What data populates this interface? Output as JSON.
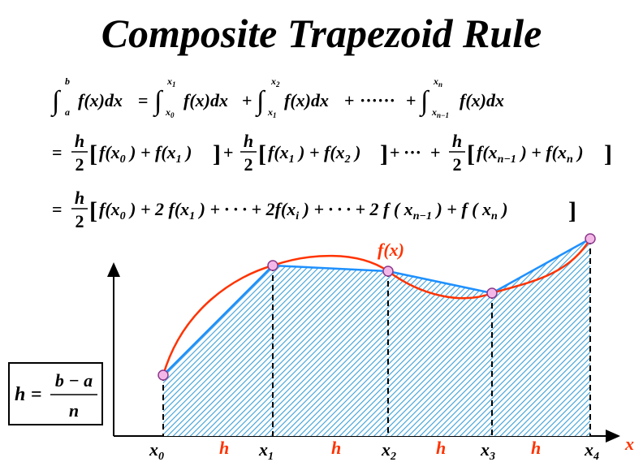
{
  "title": "Composite Trapezoid Rule",
  "formula": {
    "line1": {
      "int_lower": "a",
      "int_upper": "b",
      "f": "f(x)dx",
      "eq": "=",
      "int1_lower": "x",
      "int1_lower_sub": "0",
      "int1_upper": "x",
      "int1_upper_sub": "1",
      "int2_lower": "x",
      "int2_lower_sub": "1",
      "int2_upper": "x",
      "int2_upper_sub": "2",
      "plus": "+",
      "dots": "······",
      "intn_lower": "x",
      "intn_lower_sub": "n−1",
      "intn_upper": "x",
      "intn_upper_sub": "n"
    },
    "line2": {
      "h": "h",
      "two": "2",
      "ellipsis": "···"
    },
    "line3": {
      "coef": "2",
      "fxi": "2f(x",
      "sub_i": "i",
      "sub_n1": "n−1",
      "sub_n": "n"
    }
  },
  "h_box": {
    "lhs": "h",
    "eq": "=",
    "numerator": "b − a",
    "denominator": "n"
  },
  "curve_label": "f(x)",
  "axis": {
    "x_label": "x",
    "nodes": [
      {
        "name": "x",
        "sub": "0"
      },
      {
        "name": "x",
        "sub": "1"
      },
      {
        "name": "x",
        "sub": "2"
      },
      {
        "name": "x",
        "sub": "3"
      },
      {
        "name": "x",
        "sub": "4"
      }
    ],
    "step_label": "h"
  },
  "colors": {
    "curve": "#ff3300",
    "trapezoid_edge": "#1e90ff",
    "hatch": "#3a9fd8",
    "point_fill": "#f4b8e8"
  }
}
